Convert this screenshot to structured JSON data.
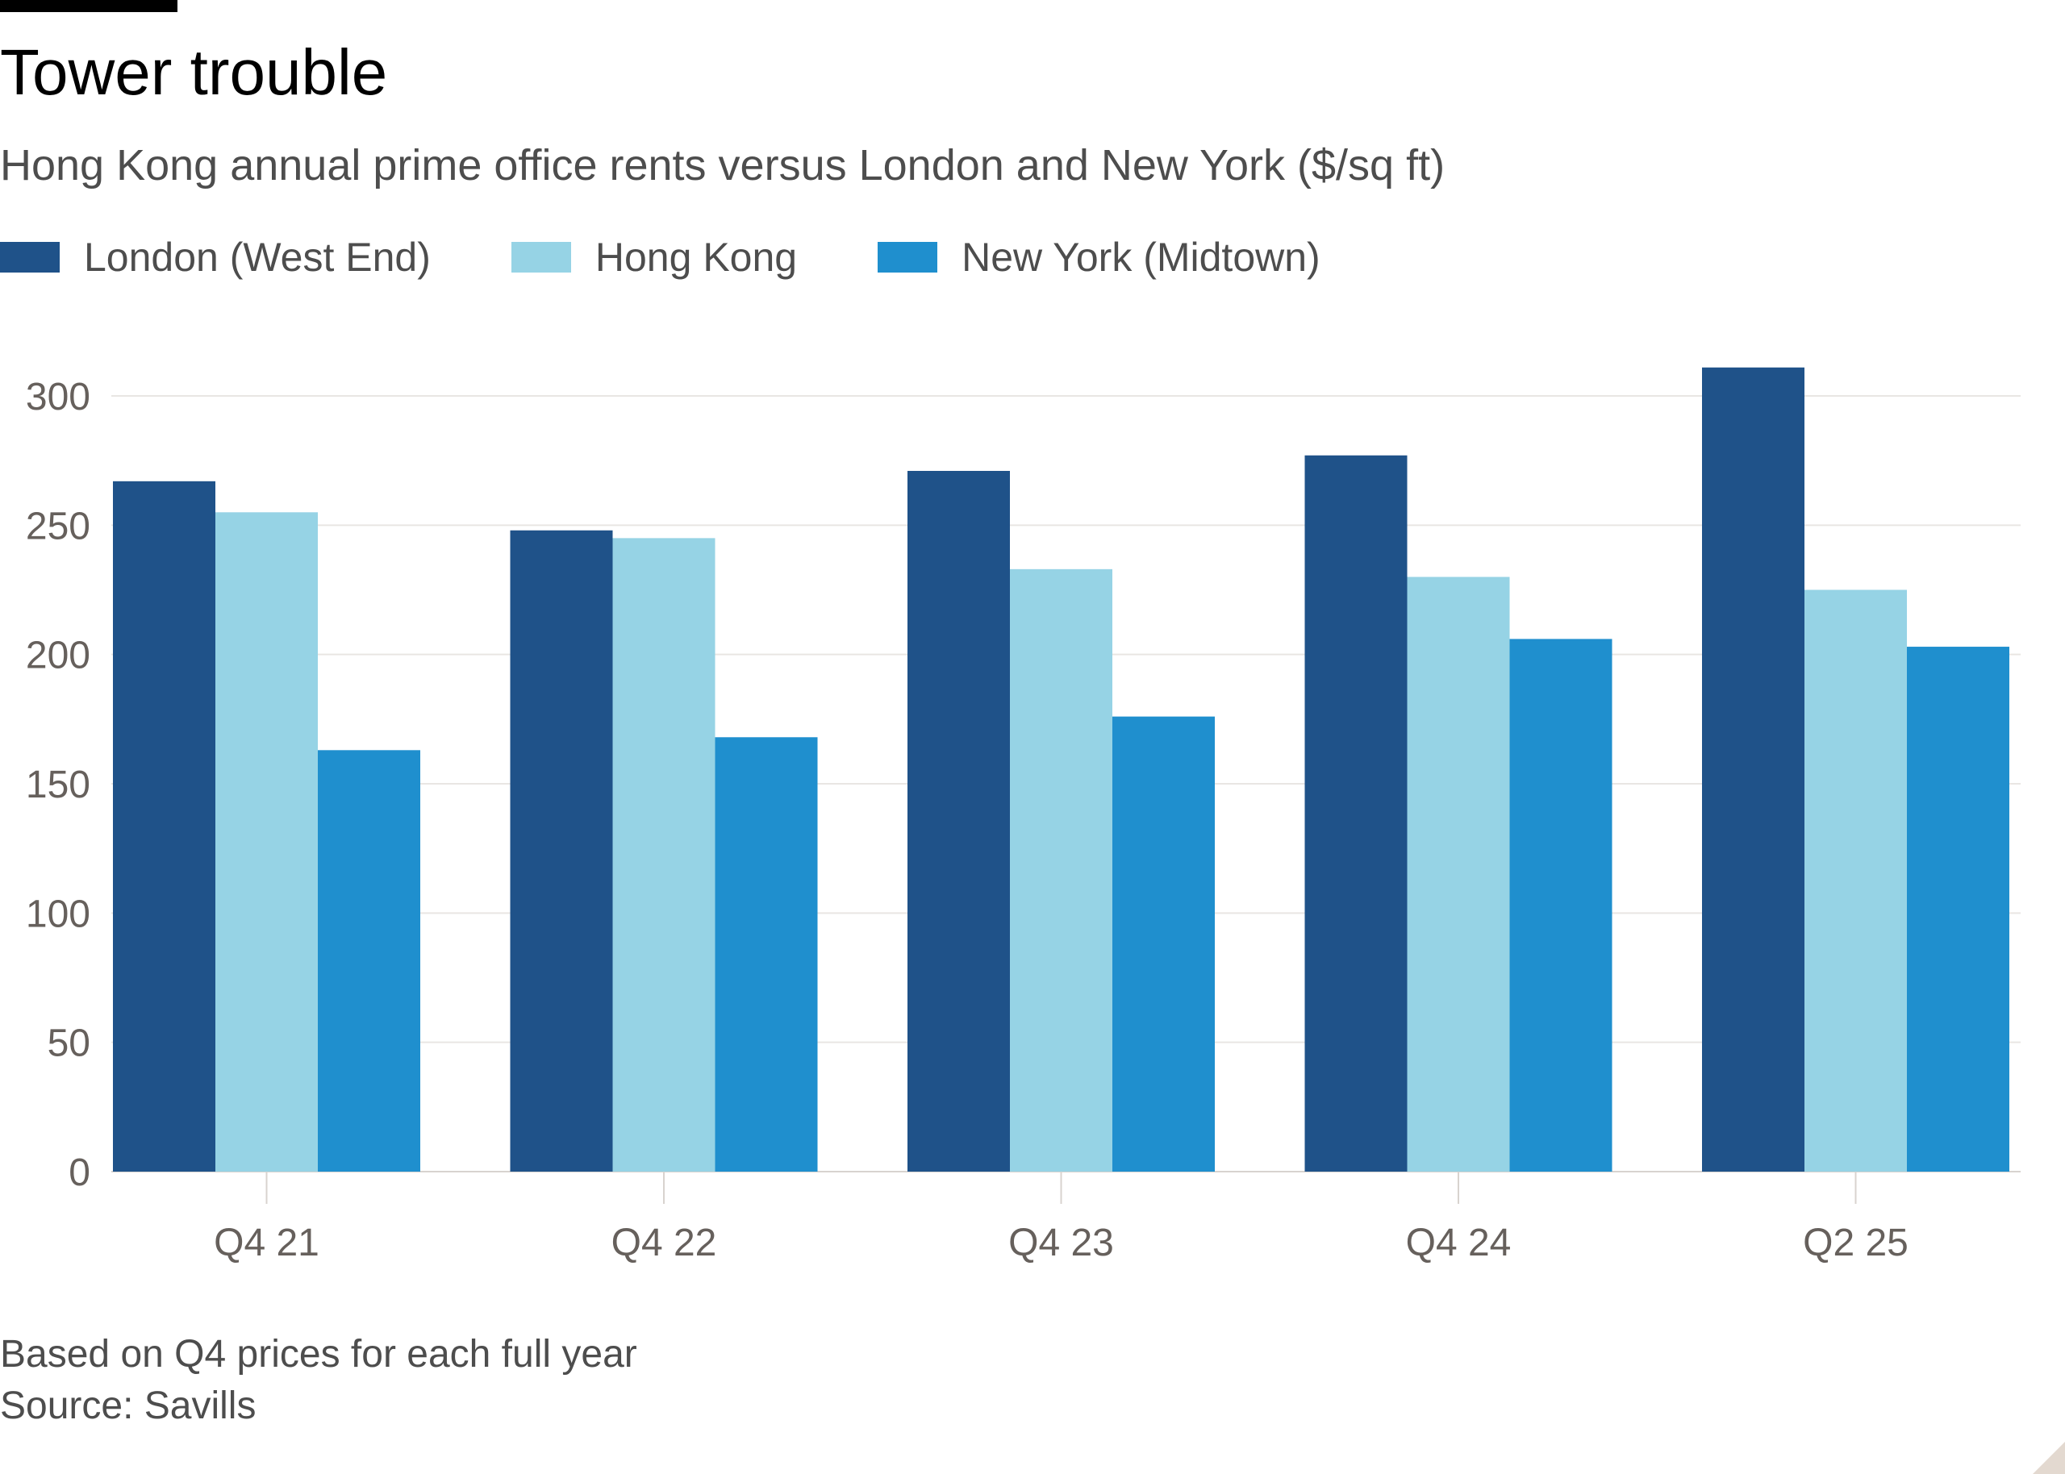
{
  "chart_data": {
    "type": "bar",
    "title": "Tower trouble",
    "subtitle": "Hong Kong annual prime office rents versus London and New York ($/sq ft)",
    "categories": [
      "Q4 21",
      "Q4 22",
      "Q4 23",
      "Q4 24",
      "Q2 25"
    ],
    "series": [
      {
        "name": "London (West End)",
        "color": "#1f5289",
        "values": [
          267,
          248,
          271,
          277,
          311
        ]
      },
      {
        "name": "Hong Kong",
        "color": "#96d3e5",
        "values": [
          255,
          245,
          233,
          230,
          225
        ]
      },
      {
        "name": "New York (Midtown)",
        "color": "#1f8fce",
        "values": [
          163,
          168,
          176,
          206,
          203
        ]
      }
    ],
    "xlabel": "",
    "ylabel": "",
    "ylim": [
      0,
      300
    ],
    "yticks": [
      0,
      50,
      100,
      150,
      200,
      250,
      300
    ],
    "grid": true,
    "legend_position": "top-left"
  },
  "notes": {
    "basis": "Based on Q4 prices for each full year",
    "source": "Source: Savills"
  }
}
